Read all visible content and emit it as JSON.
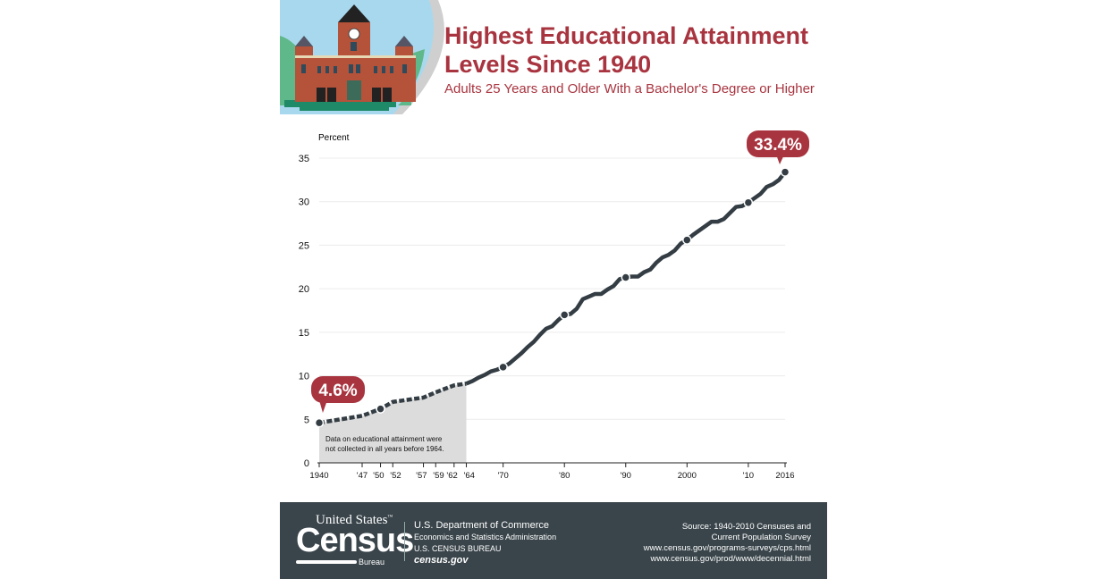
{
  "header": {
    "title_line1": "Highest Educational Attainment",
    "title_line2": "Levels Since 1940",
    "subtitle": "Adults 25 Years and Older With a Bachelor's Degree or Higher"
  },
  "chart_data": {
    "type": "line",
    "title": "Highest Educational Attainment Levels Since 1940",
    "subtitle": "Adults 25 Years and Older With a Bachelor's Degree or Higher",
    "ylabel": "Percent",
    "ylim": [
      0,
      35
    ],
    "yticks": [
      0,
      5,
      10,
      15,
      20,
      25,
      30,
      35
    ],
    "xlim": [
      1940,
      2016
    ],
    "xticks": [
      {
        "year": 1940,
        "label": "1940"
      },
      {
        "year": 1947,
        "label": "'47"
      },
      {
        "year": 1950,
        "label": "'50"
      },
      {
        "year": 1952,
        "label": "'52"
      },
      {
        "year": 1957,
        "label": "'57"
      },
      {
        "year": 1959,
        "label": "'59"
      },
      {
        "year": 1962,
        "label": "'62"
      },
      {
        "year": 1964,
        "label": "'64"
      },
      {
        "year": 1970,
        "label": "'70"
      },
      {
        "year": 1980,
        "label": "'80"
      },
      {
        "year": 1990,
        "label": "'90"
      },
      {
        "year": 2000,
        "label": "2000"
      },
      {
        "year": 2010,
        "label": "'10"
      },
      {
        "year": 2016,
        "label": "2016"
      }
    ],
    "grid": true,
    "line_color": "#333d43",
    "callout_color": "#a8343f",
    "shade_color": "#dcdcdc",
    "x": [
      1940,
      1947,
      1950,
      1952,
      1957,
      1959,
      1962,
      1964,
      1965,
      1966,
      1967,
      1968,
      1969,
      1970,
      1971,
      1972,
      1973,
      1974,
      1975,
      1976,
      1977,
      1978,
      1979,
      1980,
      1981,
      1982,
      1983,
      1984,
      1985,
      1986,
      1987,
      1988,
      1989,
      1990,
      1991,
      1992,
      1993,
      1994,
      1995,
      1996,
      1997,
      1998,
      1999,
      2000,
      2001,
      2002,
      2003,
      2004,
      2005,
      2006,
      2007,
      2008,
      2009,
      2010,
      2011,
      2012,
      2013,
      2014,
      2015,
      2016
    ],
    "values": [
      4.6,
      5.4,
      6.2,
      7.0,
      7.5,
      8.1,
      8.9,
      9.1,
      9.4,
      9.8,
      10.1,
      10.5,
      10.7,
      11.0,
      11.4,
      12.0,
      12.6,
      13.3,
      13.9,
      14.7,
      15.4,
      15.7,
      16.4,
      17.0,
      17.1,
      17.7,
      18.8,
      19.1,
      19.4,
      19.4,
      19.9,
      20.3,
      21.1,
      21.3,
      21.4,
      21.4,
      21.9,
      22.2,
      23.0,
      23.6,
      23.9,
      24.4,
      25.2,
      25.6,
      26.2,
      26.7,
      27.2,
      27.7,
      27.7,
      28.0,
      28.7,
      29.4,
      29.5,
      29.9,
      30.4,
      30.9,
      31.7,
      32.0,
      32.5,
      33.4
    ],
    "dashed_before": 1964,
    "markers": [
      1940,
      1950,
      1970,
      1980,
      1990,
      2000,
      2010,
      2016
    ],
    "annotations": {
      "start_label": "4.6%",
      "end_label": "33.4%",
      "note": [
        "Data on educational attainment were",
        "not collected in all years before 1964."
      ]
    }
  },
  "footer": {
    "logo": {
      "line1": "United States",
      "tm": "™",
      "line2": "Census",
      "line3": "Bureau"
    },
    "dept": "U.S. Department of Commerce",
    "admin": "Economics and Statistics Administration",
    "bureau": "U.S. CENSUS BUREAU",
    "website": "census.gov",
    "source_lines": [
      "Source:  1940-2010 Censuses and",
      "Current Population Survey",
      "www.census.gov/programs-surveys/cps.html",
      "www.census.gov/prod/www/decennial.html"
    ]
  }
}
